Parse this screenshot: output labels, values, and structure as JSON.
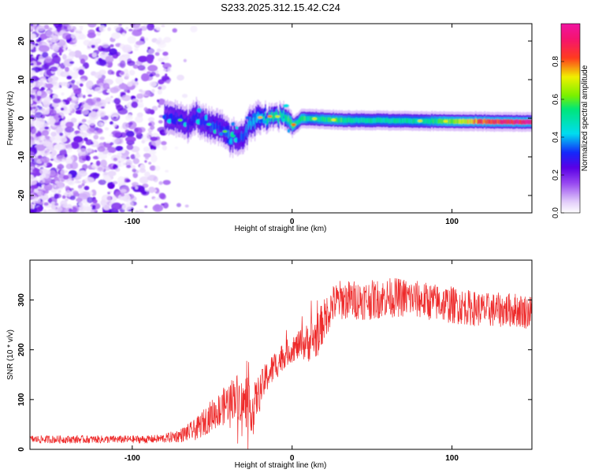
{
  "title": "S233.2025.312.15.42.C24",
  "chart_data": [
    {
      "type": "heatmap",
      "xlabel": "Height of straight line (km)",
      "ylabel": "Frequency (Hz)",
      "xlim": [
        -164,
        150
      ],
      "ylim": [
        -24.5,
        24.5
      ],
      "xticks": [
        -100,
        0,
        100
      ],
      "yticks": [
        -20,
        -10,
        0,
        10,
        20
      ],
      "colorbar": {
        "label": "Normalized spectral amplitude",
        "range": [
          0,
          1
        ],
        "ticks": [
          0.0,
          0.2,
          0.4,
          0.6,
          0.8
        ],
        "tick_labels": [
          "0.0",
          "0.2",
          "0.4",
          "0.6",
          "0.8"
        ]
      },
      "ridge": {
        "x": [
          -80,
          -75,
          -70,
          -65,
          -60,
          -55,
          -50,
          -45,
          -40,
          -35,
          -30,
          -25,
          -20,
          -15,
          -10,
          -5,
          0,
          3,
          6,
          10,
          20,
          30,
          40,
          60,
          80,
          100,
          120,
          150
        ],
        "frequency": [
          0.5,
          0.2,
          -0.5,
          -1,
          0.5,
          -1,
          -2,
          -2.5,
          -4,
          -5,
          -4,
          -1,
          0.2,
          0.5,
          0.5,
          0.2,
          -2,
          -1,
          0,
          0,
          -0.3,
          -0.5,
          -0.5,
          -0.6,
          -0.7,
          -0.8,
          -0.9,
          -1.0
        ],
        "amplitude": [
          0.25,
          0.3,
          0.3,
          0.3,
          0.3,
          0.3,
          0.35,
          0.3,
          0.35,
          0.3,
          0.35,
          0.4,
          0.45,
          0.5,
          0.55,
          0.5,
          0.6,
          0.5,
          0.6,
          0.5,
          0.55,
          0.55,
          0.5,
          0.5,
          0.5,
          0.6,
          0.85,
          0.95
        ]
      }
    },
    {
      "type": "line",
      "xlabel": "Height of straight line (km)",
      "ylabel": "SNR (10 * v/v)",
      "xlim": [
        -164,
        150
      ],
      "ylim": [
        0,
        380
      ],
      "xticks": [
        -100,
        0,
        100
      ],
      "yticks": [
        0,
        100,
        200,
        300
      ],
      "series": [
        {
          "color": "#ee2a2a",
          "x": [
            -164,
            -150,
            -130,
            -110,
            -90,
            -80,
            -70,
            -60,
            -55,
            -50,
            -45,
            -40,
            -35,
            -30,
            -25,
            -20,
            -15,
            -10,
            -5,
            0,
            5,
            10,
            15,
            20,
            25,
            30,
            40,
            50,
            60,
            70,
            80,
            90,
            100,
            110,
            120,
            130,
            140,
            150
          ],
          "y": [
            20,
            20,
            20,
            20,
            20,
            22,
            28,
            40,
            55,
            70,
            80,
            95,
            110,
            90,
            80,
            120,
            150,
            170,
            190,
            200,
            210,
            215,
            225,
            260,
            290,
            300,
            300,
            300,
            305,
            305,
            300,
            295,
            290,
            285,
            280,
            280,
            280,
            275
          ],
          "noise": [
            8,
            8,
            8,
            8,
            8,
            9,
            14,
            22,
            28,
            32,
            36,
            40,
            45,
            45,
            45,
            35,
            32,
            30,
            28,
            25,
            30,
            40,
            45,
            42,
            40,
            40,
            40,
            40,
            40,
            40,
            38,
            38,
            38,
            36,
            35,
            35,
            35,
            35
          ]
        }
      ]
    }
  ]
}
